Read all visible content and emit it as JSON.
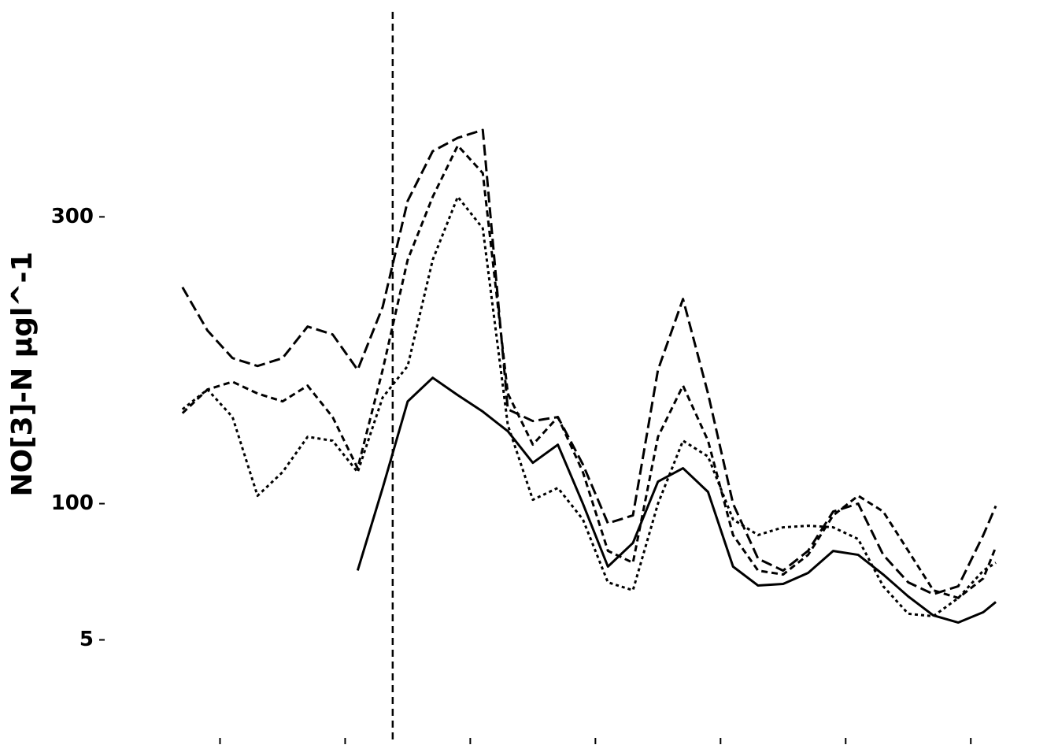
{
  "chart_data": {
    "type": "line",
    "y_label": "NO[3]-N µgl^-1",
    "x": [
      7,
      9,
      11,
      13,
      15,
      17,
      19,
      21,
      23,
      25,
      27,
      29,
      31,
      33,
      35,
      37,
      39,
      41,
      43,
      45,
      47,
      49,
      51,
      53,
      55,
      57,
      59,
      61,
      63,
      65,
      67,
      69,
      71,
      72
    ],
    "series": [
      {
        "color": "#000000",
        "dash": "solid",
        "values": [
          null,
          null,
          null,
          null,
          null,
          null,
          null,
          53.4,
          111,
          171.3,
          187.8,
          175.7,
          164.2,
          150.5,
          128.5,
          141.1,
          100,
          56.1,
          72.6,
          115.4,
          124.7,
          108.2,
          56.1,
          42.9,
          44,
          51.7,
          67,
          64.3,
          50.6,
          35.3,
          22.1,
          17.1,
          24.3,
          31.4
        ]
      },
      {
        "color": "#000000",
        "dash": "long",
        "values": [
          250.9,
          220.7,
          201.5,
          196,
          201.5,
          223.5,
          218,
          193.3,
          237.2,
          311.2,
          345.8,
          355.1,
          360.6,
          165.8,
          157.6,
          160.4,
          127.4,
          86.3,
          91.8,
          193.3,
          242.7,
          176.8,
          100,
          61.6,
          53.3,
          67.1,
          94.5,
          100,
          64.3,
          45.1,
          36.9,
          42.4,
          78.1,
          98.4
        ]
      },
      {
        "color": "#000000",
        "dash": "medium",
        "values": [
          163.1,
          179.6,
          185,
          176.8,
          171.3,
          182.3,
          160.4,
          124.7,
          193.3,
          270.1,
          314,
          349.7,
          330.5,
          176.8,
          141.2,
          160.4,
          122,
          67.1,
          58.8,
          146.6,
          182.3,
          143.9,
          78.1,
          53.3,
          50.6,
          64.3,
          91.8,
          105.5,
          94.5,
          67.1,
          39.6,
          34.2,
          47.9,
          69.8
        ]
      },
      {
        "color": "#000000",
        "dash": "dotted",
        "values": [
          165.8,
          179.6,
          160.4,
          105.5,
          122,
          146.6,
          143.9,
          122,
          174.1,
          196,
          270.1,
          314,
          292,
          154.9,
          102.7,
          111,
          89,
          45.1,
          39.6,
          100,
          143.9,
          132.9,
          89,
          78.1,
          83.5,
          84.6,
          83.5,
          75.3,
          42.4,
          23.2,
          21.5,
          34.2,
          53.3,
          58.8
        ]
      }
    ],
    "vline_x": 23.8,
    "xlim": [
      5,
      74.2
    ],
    "xticks": [
      {
        "value": 10,
        "label": null
      },
      {
        "value": 20,
        "label": null
      },
      {
        "value": 30,
        "label": null
      },
      {
        "value": 40,
        "label": null
      },
      {
        "value": 50,
        "label": null
      },
      {
        "value": 60,
        "label": null
      },
      {
        "value": 70,
        "label": null
      }
    ],
    "ylim": [
      -65,
      443
    ],
    "yticks": [
      5,
      100,
      300
    ],
    "grid": false
  }
}
